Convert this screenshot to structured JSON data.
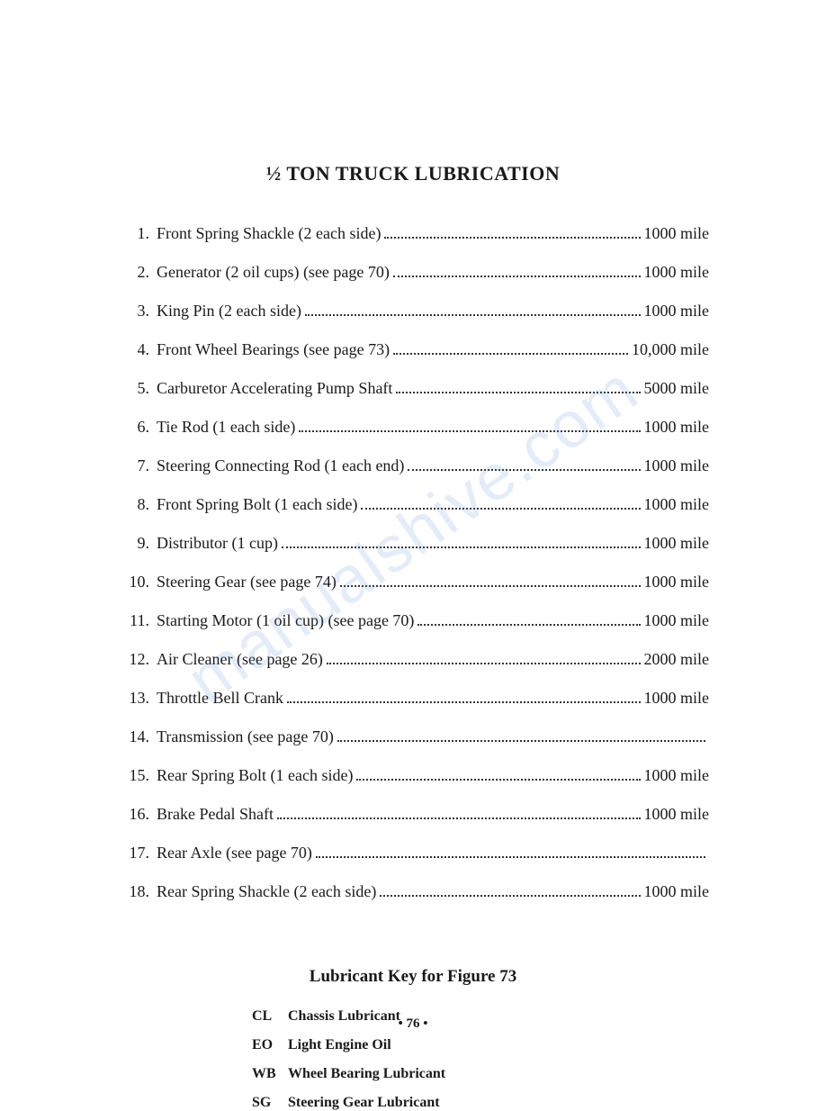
{
  "title": "½ TON TRUCK LUBRICATION",
  "items": [
    {
      "num": "1.",
      "label": "Front Spring Shackle (2 each side)",
      "interval": "1000 mile"
    },
    {
      "num": "2.",
      "label": "Generator (2 oil cups) (see page 70)",
      "interval": "1000 mile"
    },
    {
      "num": "3.",
      "label": "King Pin (2 each side)",
      "interval": "1000 mile"
    },
    {
      "num": "4.",
      "label": "Front Wheel Bearings (see page 73)",
      "interval": "10,000 mile"
    },
    {
      "num": "5.",
      "label": "Carburetor Accelerating Pump Shaft",
      "interval": "5000 mile"
    },
    {
      "num": "6.",
      "label": "Tie Rod (1 each side)",
      "interval": "1000 mile"
    },
    {
      "num": "7.",
      "label": "Steering Connecting Rod (1 each end)",
      "interval": "1000 mile"
    },
    {
      "num": "8.",
      "label": "Front Spring Bolt (1 each side)",
      "interval": "1000 mile"
    },
    {
      "num": "9.",
      "label": "Distributor (1 cup)",
      "interval": "1000 mile"
    },
    {
      "num": "10.",
      "label": "Steering Gear (see page 74)",
      "interval": " 1000 mile"
    },
    {
      "num": "11.",
      "label": "Starting Motor (1 oil cup) (see page 70)",
      "interval": "1000 mile"
    },
    {
      "num": "12.",
      "label": "Air Cleaner (see page 26)",
      "interval": "2000 mile"
    },
    {
      "num": "13.",
      "label": "Throttle Bell Crank",
      "interval": "1000 mile"
    },
    {
      "num": "14.",
      "label": "Transmission (see page 70)",
      "interval": ""
    },
    {
      "num": "15.",
      "label": "Rear Spring Bolt (1 each side)",
      "interval": "1000 mile"
    },
    {
      "num": "16.",
      "label": "Brake Pedal Shaft",
      "interval": "1000 mile"
    },
    {
      "num": "17.",
      "label": "Rear Axle (see page 70)",
      "interval": ""
    },
    {
      "num": "18.",
      "label": "Rear Spring Shackle (2 each side)",
      "interval": "1000 mile"
    }
  ],
  "key_title": "Lubricant Key for Figure 73",
  "key_items": [
    {
      "code": "CL",
      "desc": "Chassis Lubricant"
    },
    {
      "code": "EO",
      "desc": "Light Engine Oil"
    },
    {
      "code": "WB",
      "desc": "Wheel Bearing Lubricant"
    },
    {
      "code": "SG",
      "desc": "Steering Gear Lubricant"
    }
  ],
  "page_number": "• 76 •",
  "watermark": "manualshive.com"
}
